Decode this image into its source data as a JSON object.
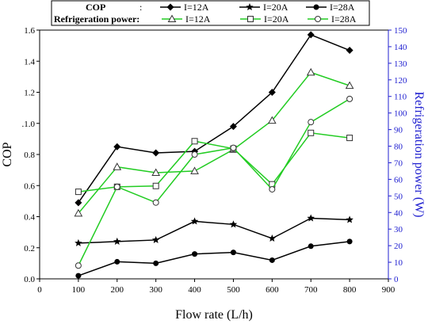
{
  "chart_data": {
    "type": "line",
    "xlabel": "Flow rate (L/h)",
    "ylabel_left": "COP",
    "ylabel_right": "Refrigeration power (W)",
    "xlim": [
      0,
      900
    ],
    "ylim_left": [
      0,
      1.6
    ],
    "ylim_right": [
      0,
      150
    ],
    "x_ticks": [
      "0",
      "100",
      "200",
      "300",
      "400",
      "500",
      "600",
      "700",
      "800",
      "900"
    ],
    "y_left_ticks": [
      "0.0",
      "0.2",
      "0.4",
      "0.6",
      "0.8",
      ".1.0",
      "1.2",
      "1.4",
      "1.6"
    ],
    "y_right_ticks": [
      "0",
      "10",
      "20",
      "30",
      "40",
      "50",
      "60",
      "70",
      "80",
      "90",
      "100",
      "110",
      "120",
      "130",
      "140",
      "150"
    ],
    "x": [
      100,
      200,
      300,
      400,
      500,
      600,
      700,
      800
    ],
    "legend": {
      "cop_label": "COP",
      "cop_sep": ":",
      "power_label": "Refrigeration power:",
      "position": "top"
    },
    "series": [
      {
        "name": "I=12A",
        "group": "COP",
        "axis": "left",
        "color": "#000000",
        "marker": "diamond-filled",
        "values": [
          0.49,
          0.85,
          0.81,
          0.82,
          0.98,
          1.2,
          1.57,
          1.47
        ]
      },
      {
        "name": "I=20A",
        "group": "COP",
        "axis": "left",
        "color": "#000000",
        "marker": "star",
        "values": [
          0.23,
          0.24,
          0.25,
          0.37,
          0.35,
          0.26,
          0.39,
          0.38
        ]
      },
      {
        "name": "I=28A",
        "group": "COP",
        "axis": "left",
        "color": "#000000",
        "marker": "circle-filled",
        "values": [
          0.02,
          0.11,
          0.1,
          0.16,
          0.17,
          0.12,
          0.21,
          0.24
        ]
      },
      {
        "name": "I=12A",
        "group": "Refrigeration power",
        "axis": "right",
        "color": "#22cc22",
        "marker": "triangle-open",
        "values": [
          39.5,
          67.5,
          64,
          65,
          78,
          95.5,
          124.5,
          116.5
        ]
      },
      {
        "name": "I=20A",
        "group": "Refrigeration power",
        "axis": "right",
        "color": "#22cc22",
        "marker": "square-open",
        "values": [
          52.5,
          55.5,
          56,
          83,
          78.5,
          57,
          88,
          85
        ]
      },
      {
        "name": "I=28A",
        "group": "Refrigeration power",
        "axis": "right",
        "color": "#22cc22",
        "marker": "circle-open",
        "values": [
          8,
          55.5,
          46,
          75,
          79,
          54,
          94.5,
          108.5
        ]
      }
    ],
    "colors": {
      "axis_left": "#000000",
      "axis_right": "#2020d0",
      "cop_line": "#000000",
      "power_line": "#22cc22"
    },
    "grid": false
  }
}
